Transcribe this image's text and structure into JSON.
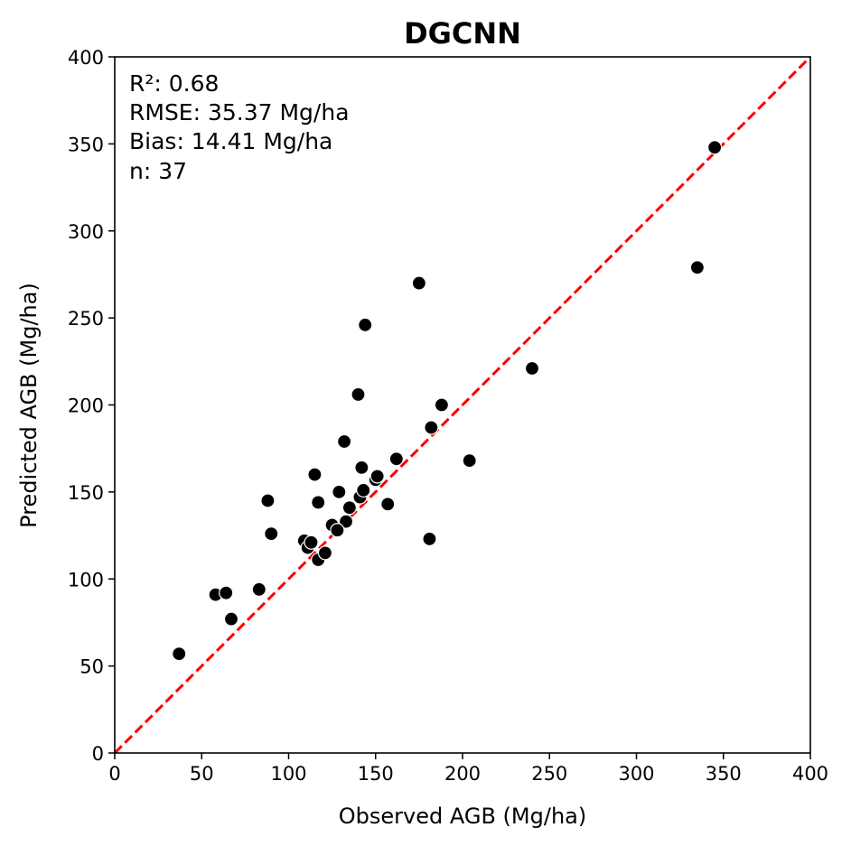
{
  "chart_data": {
    "type": "scatter",
    "title": "DGCNN",
    "xlabel": "Observed AGB (Mg/ha)",
    "ylabel": "Predicted AGB (Mg/ha)",
    "xlim": [
      0,
      400
    ],
    "ylim": [
      0,
      400
    ],
    "xticks": [
      "0",
      "50",
      "100",
      "150",
      "200",
      "250",
      "300",
      "350",
      "400"
    ],
    "yticks": [
      "0",
      "50",
      "100",
      "150",
      "200",
      "250",
      "300",
      "350",
      "400"
    ],
    "grid": false,
    "annotations": [
      "R²: 0.68",
      "RMSE: 35.37 Mg/ha",
      "Bias: 14.41 Mg/ha",
      "n: 37"
    ],
    "reference_line": {
      "style": "dashed",
      "color": "#ff0000",
      "from": [
        0,
        0
      ],
      "to": [
        400,
        400
      ]
    },
    "marker_color": "#000000",
    "points": [
      {
        "x": 37,
        "y": 57
      },
      {
        "x": 58,
        "y": 91
      },
      {
        "x": 64,
        "y": 92
      },
      {
        "x": 67,
        "y": 77
      },
      {
        "x": 83,
        "y": 94
      },
      {
        "x": 88,
        "y": 145
      },
      {
        "x": 90,
        "y": 126
      },
      {
        "x": 109,
        "y": 122
      },
      {
        "x": 111,
        "y": 118
      },
      {
        "x": 113,
        "y": 121
      },
      {
        "x": 115,
        "y": 160
      },
      {
        "x": 117,
        "y": 111
      },
      {
        "x": 117,
        "y": 144
      },
      {
        "x": 121,
        "y": 115
      },
      {
        "x": 125,
        "y": 131
      },
      {
        "x": 129,
        "y": 150
      },
      {
        "x": 132,
        "y": 179
      },
      {
        "x": 133,
        "y": 133
      },
      {
        "x": 135,
        "y": 141
      },
      {
        "x": 140,
        "y": 206
      },
      {
        "x": 141,
        "y": 147
      },
      {
        "x": 142,
        "y": 164
      },
      {
        "x": 143,
        "y": 151
      },
      {
        "x": 144,
        "y": 246
      },
      {
        "x": 150,
        "y": 157
      },
      {
        "x": 151,
        "y": 159
      },
      {
        "x": 157,
        "y": 143
      },
      {
        "x": 162,
        "y": 169
      },
      {
        "x": 175,
        "y": 270
      },
      {
        "x": 181,
        "y": 123
      },
      {
        "x": 182,
        "y": 187
      },
      {
        "x": 188,
        "y": 200
      },
      {
        "x": 204,
        "y": 168
      },
      {
        "x": 240,
        "y": 221
      },
      {
        "x": 335,
        "y": 279
      },
      {
        "x": 345,
        "y": 348
      },
      {
        "x": 128,
        "y": 128
      }
    ]
  }
}
